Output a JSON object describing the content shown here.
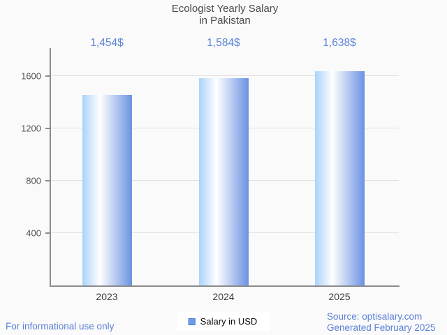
{
  "page": {
    "background": "#fafafa"
  },
  "chart_data": {
    "type": "bar",
    "title": "Ecologist Yearly Salary in Pakistan",
    "title_lines": [
      "Ecologist Yearly Salary",
      "in Pakistan"
    ],
    "categories": [
      "2023",
      "2024",
      "2025"
    ],
    "series": [
      {
        "name": "Salary in USD",
        "values": [
          1454,
          1584,
          1638
        ]
      }
    ],
    "value_labels": [
      "1,454$",
      "1,584$",
      "1,638$"
    ],
    "xlabel": "",
    "ylabel": "",
    "ylim": [
      0,
      1800
    ],
    "yticks": [
      400,
      800,
      1200,
      1600
    ],
    "grid": true,
    "legend_position": "bottom-center",
    "colors": {
      "bar_gradient_left": "#a9d2fa",
      "bar_gradient_mid": "#ffffff",
      "bar_gradient_right": "#6b92e2",
      "value_label": "#5b83d8",
      "legend_swatch_fill": "#6d9ce9",
      "legend_swatch_border": "#4a7ed2",
      "axis_line": "#8a8a8a",
      "gridline": "#e0e0e0",
      "y_tick_label": "#555555",
      "category_label": "#3d3d3d",
      "title": "#4a4a4a"
    }
  },
  "legend": {
    "label": "Salary in USD"
  },
  "footer": {
    "left": "For informational use only",
    "source": "Source: optisalary.com",
    "generated": "Generated February 2025",
    "link_color": "#5b80d6"
  }
}
